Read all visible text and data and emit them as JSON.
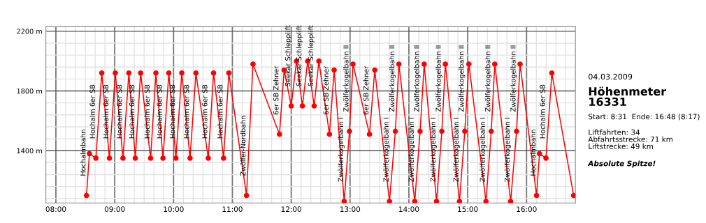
{
  "chart_data": {
    "type": "line",
    "title": "Höhenmeter\n16331",
    "subtitle": "04.03.2009",
    "x": [
      8.52,
      8.57,
      8.68,
      8.78,
      8.91,
      9.01,
      9.14,
      9.24,
      9.35,
      9.44,
      9.61,
      9.7,
      9.82,
      9.92,
      10.04,
      10.14,
      10.28,
      10.38,
      10.59,
      10.68,
      10.85,
      10.94,
      11.24,
      11.35,
      11.8,
      11.88,
      12.0,
      12.09,
      12.19,
      12.28,
      12.39,
      12.47,
      12.65,
      12.73,
      12.9,
      12.99,
      13.05,
      13.33,
      13.42,
      13.67,
      13.77,
      13.83,
      14.1,
      14.19,
      14.26,
      14.47,
      14.56,
      14.62,
      14.86,
      14.95,
      15.02,
      15.31,
      15.4,
      15.46,
      15.73,
      15.83,
      15.89,
      16.17,
      16.22,
      16.33,
      16.43,
      16.8
    ],
    "series": [
      {
        "color": "#ff0000",
        "values": [
          1100,
          1380,
          1350,
          1920,
          1350,
          1920,
          1350,
          1920,
          1350,
          1920,
          1350,
          1920,
          1350,
          1920,
          1350,
          1920,
          1350,
          1920,
          1350,
          1920,
          1350,
          1920,
          1100,
          1980,
          1510,
          1940,
          1700,
          2000,
          1700,
          2000,
          1700,
          2000,
          1510,
          1940,
          1060,
          1530,
          1980,
          1510,
          1940,
          1060,
          1530,
          1980,
          1060,
          1530,
          1980,
          1060,
          1530,
          1980,
          1060,
          1530,
          1980,
          1060,
          1530,
          1980,
          1060,
          1530,
          1980,
          1100,
          1380,
          1350,
          1920,
          1100
        ]
      }
    ],
    "xlim": [
      7.83,
      16.83
    ],
    "xticks": [
      {
        "value": 8,
        "label": "08:00"
      },
      {
        "value": 8.1667,
        "label": null
      },
      {
        "value": 8.3333,
        "label": null
      },
      {
        "value": 8.5,
        "label": null
      },
      {
        "value": 8.6667,
        "label": null
      },
      {
        "value": 8.8333,
        "label": null
      },
      {
        "value": 9,
        "label": "09:00"
      },
      {
        "value": 9.1667,
        "label": null
      },
      {
        "value": 9.3333,
        "label": null
      },
      {
        "value": 9.5,
        "label": null
      },
      {
        "value": 9.6667,
        "label": null
      },
      {
        "value": 9.8333,
        "label": null
      },
      {
        "value": 10,
        "label": "10:00"
      },
      {
        "value": 10.1667,
        "label": null
      },
      {
        "value": 10.3333,
        "label": null
      },
      {
        "value": 10.5,
        "label": null
      },
      {
        "value": 10.6667,
        "label": null
      },
      {
        "value": 10.8333,
        "label": null
      },
      {
        "value": 11,
        "label": "11:00"
      },
      {
        "value": 11.1667,
        "label": null
      },
      {
        "value": 11.3333,
        "label": null
      },
      {
        "value": 11.5,
        "label": null
      },
      {
        "value": 11.6667,
        "label": null
      },
      {
        "value": 11.8333,
        "label": null
      },
      {
        "value": 12,
        "label": "12:00"
      },
      {
        "value": 12.1667,
        "label": null
      },
      {
        "value": 12.3333,
        "label": null
      },
      {
        "value": 12.5,
        "label": null
      },
      {
        "value": 12.6667,
        "label": null
      },
      {
        "value": 12.8333,
        "label": null
      },
      {
        "value": 13,
        "label": "13:00"
      },
      {
        "value": 13.1667,
        "label": null
      },
      {
        "value": 13.3333,
        "label": null
      },
      {
        "value": 13.5,
        "label": null
      },
      {
        "value": 13.6667,
        "label": null
      },
      {
        "value": 13.8333,
        "label": null
      },
      {
        "value": 14,
        "label": "14:00"
      },
      {
        "value": 14.1667,
        "label": null
      },
      {
        "value": 14.3333,
        "label": null
      },
      {
        "value": 14.5,
        "label": null
      },
      {
        "value": 14.6667,
        "label": null
      },
      {
        "value": 14.8333,
        "label": null
      },
      {
        "value": 15,
        "label": "15:00"
      },
      {
        "value": 15.1667,
        "label": null
      },
      {
        "value": 15.3333,
        "label": null
      },
      {
        "value": 15.5,
        "label": null
      },
      {
        "value": 15.6667,
        "label": null
      },
      {
        "value": 15.8333,
        "label": null
      },
      {
        "value": 16,
        "label": "16:00"
      },
      {
        "value": 16.1667,
        "label": null
      },
      {
        "value": 16.3333,
        "label": null
      },
      {
        "value": 16.5,
        "label": null
      },
      {
        "value": 16.6667,
        "label": null
      }
    ],
    "ylim": [
      1050,
      2230
    ],
    "yticks": [
      {
        "value": 1080,
        "label": null
      },
      {
        "value": 1160,
        "label": null
      },
      {
        "value": 1240,
        "label": null
      },
      {
        "value": 1320,
        "label": null
      },
      {
        "value": 1400,
        "label": "1400 m"
      },
      {
        "value": 1480,
        "label": null
      },
      {
        "value": 1560,
        "label": null
      },
      {
        "value": 1640,
        "label": null
      },
      {
        "value": 1720,
        "label": null
      },
      {
        "value": 1800,
        "label": "1800 m"
      },
      {
        "value": 1880,
        "label": null
      },
      {
        "value": 1960,
        "label": null
      },
      {
        "value": 2040,
        "label": null
      },
      {
        "value": 2120,
        "label": null
      },
      {
        "value": 2200,
        "label": "2200 m"
      }
    ],
    "grid": true,
    "legend": false,
    "marker": "circle",
    "line_style": "solid",
    "annotations": [
      {
        "text": "Hochalmbahn",
        "x": 8.52,
        "y": 1100
      },
      {
        "text": "Hochalm 6er SB",
        "x": 8.68,
        "y": 1350
      },
      {
        "text": "Hochalm 6er SB",
        "x": 8.91,
        "y": 1350
      },
      {
        "text": "Hochalm 6er SB",
        "x": 9.14,
        "y": 1350
      },
      {
        "text": "Hochalm 6er SB",
        "x": 9.35,
        "y": 1350
      },
      {
        "text": "Hochalm 6er SB",
        "x": 9.61,
        "y": 1350
      },
      {
        "text": "Hochalm 6er SB",
        "x": 9.82,
        "y": 1350
      },
      {
        "text": "Hochalm 6er SB",
        "x": 10.04,
        "y": 1350
      },
      {
        "text": "Hochalm 6er SB",
        "x": 10.28,
        "y": 1350
      },
      {
        "text": "Hochalm 6er SB",
        "x": 10.59,
        "y": 1350
      },
      {
        "text": "Hochalm 6er SB",
        "x": 10.85,
        "y": 1350
      },
      {
        "text": "Zwölfer-Nordbahn",
        "x": 11.24,
        "y": 1100
      },
      {
        "text": "6er SB Zehner",
        "x": 11.8,
        "y": 1510
      },
      {
        "text": "Seekar Schlepplift",
        "x": 12.0,
        "y": 1700
      },
      {
        "text": "Seekar Schlepplift",
        "x": 12.19,
        "y": 1700
      },
      {
        "text": "Seekar Schlepplift",
        "x": 12.39,
        "y": 1700
      },
      {
        "text": "6er SB Zehner",
        "x": 12.65,
        "y": 1510
      },
      {
        "text": "Zwölferkogelbahn I",
        "x": 12.9,
        "y": 1060
      },
      {
        "text": "Zwölferkogelbahn II",
        "x": 12.99,
        "y": 1530
      },
      {
        "text": "6er SB Zehner",
        "x": 13.33,
        "y": 1510
      },
      {
        "text": "Zwölferkogelbahn I",
        "x": 13.67,
        "y": 1060
      },
      {
        "text": "Zwölferkogelbahn II",
        "x": 13.77,
        "y": 1530
      },
      {
        "text": "Zwölferkogelbahn I",
        "x": 14.1,
        "y": 1060
      },
      {
        "text": "Zwölferkogelbahn II",
        "x": 14.19,
        "y": 1530
      },
      {
        "text": "Zwölferkogelbahn I",
        "x": 14.47,
        "y": 1060
      },
      {
        "text": "Zwölferkogelbahn II",
        "x": 14.56,
        "y": 1530
      },
      {
        "text": "Zwölferkogelbahn I",
        "x": 14.86,
        "y": 1060
      },
      {
        "text": "Zwölferkogelbahn II",
        "x": 14.95,
        "y": 1530
      },
      {
        "text": "Zwölferkogelbahn I",
        "x": 15.31,
        "y": 1060
      },
      {
        "text": "Zwölferkogelbahn II",
        "x": 15.4,
        "y": 1530
      },
      {
        "text": "Zwölferkogelbahn I",
        "x": 15.73,
        "y": 1060
      },
      {
        "text": "Zwölferkogelbahn II",
        "x": 15.83,
        "y": 1530
      },
      {
        "text": "Hochalmbahn",
        "x": 16.17,
        "y": 1100
      },
      {
        "text": "Hochalm 6er SB",
        "x": 16.33,
        "y": 1350
      },
      "Start: 8:31  Ende: 16:48 (8:17)",
      "Liftfahrten: 34\nAbfahrtsstrecke: 71 km\nLiftstrecke: 49 km",
      "Absolute Spitze!"
    ]
  }
}
